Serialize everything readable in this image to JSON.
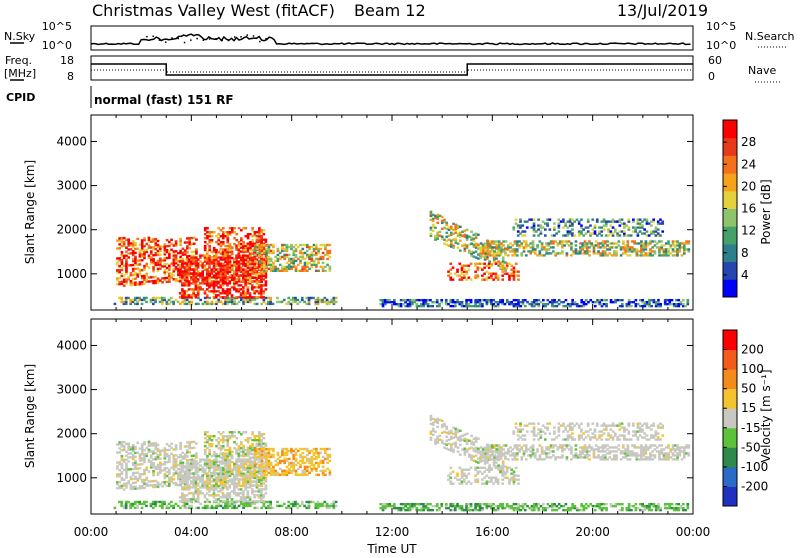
{
  "header": {
    "station": "Christmas Valley West (fitACF)",
    "beam": "Beam 12",
    "date": "13/Jul/2019"
  },
  "noise_panel": {
    "left_label": "N.Sky",
    "left_ticks": [
      "10^5",
      "10^0"
    ],
    "right_label": "N.Search",
    "right_ticks": [
      "10^5",
      "10^0"
    ]
  },
  "freq_panel": {
    "left_label_1": "Freq.",
    "left_label_2": "[MHz]",
    "left_ticks": [
      "18",
      "8"
    ],
    "right_label": "Nave",
    "right_ticks": [
      "60",
      "0"
    ]
  },
  "cpid_panel": {
    "label": "CPID",
    "value": "normal (fast) 151 RF"
  },
  "chart_data": [
    {
      "type": "heatmap",
      "name": "power",
      "ylabel": "Slant Range [km]",
      "xlabel": "",
      "y_ticks": [
        "4000",
        "3000",
        "2000",
        "1000"
      ],
      "ylim": [
        180,
        4600
      ],
      "colorbar": {
        "label": "Power [dB]",
        "ticks": [
          "28",
          "24",
          "20",
          "16",
          "12",
          "8",
          "4"
        ],
        "range": [
          0,
          32
        ],
        "colors": [
          "#0000ff",
          "#2545b0",
          "#2e7f8c",
          "#46a06a",
          "#8fc36b",
          "#e3d23b",
          "#f5a31a",
          "#f4701a",
          "#e83a1a",
          "#ff0000"
        ]
      }
    },
    {
      "type": "heatmap",
      "name": "velocity",
      "ylabel": "Slant Range [km]",
      "xlabel": "Time UT",
      "y_ticks": [
        "4000",
        "3000",
        "2000",
        "1000"
      ],
      "ylim": [
        180,
        4600
      ],
      "colorbar": {
        "label": "Velocity [m s⁻¹]",
        "ticks": [
          "200",
          "100",
          "50",
          "15",
          "-15",
          "-50",
          "-100",
          "-200"
        ],
        "range": [
          -250,
          250
        ],
        "colors": [
          "#2030c0",
          "#2a6bc8",
          "#2e8a4a",
          "#5cc23a",
          "#c8c8c0",
          "#f4c430",
          "#f48a1a",
          "#f45a1a",
          "#ff0000"
        ]
      },
      "x_ticks": [
        "00:00",
        "04:00",
        "08:00",
        "12:00",
        "16:00",
        "20:00",
        "00:00"
      ]
    }
  ]
}
